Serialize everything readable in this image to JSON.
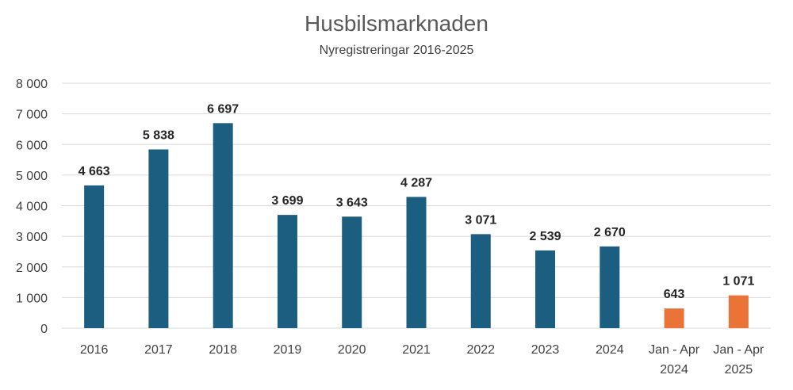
{
  "chart_data": {
    "type": "bar",
    "title": "Husbilsmarknaden",
    "subtitle": "Nyregistreringar 2016-2025",
    "xlabel": "",
    "ylabel": "",
    "ylim": [
      0,
      8000
    ],
    "yticks": [
      0,
      1000,
      2000,
      3000,
      4000,
      5000,
      6000,
      7000,
      8000
    ],
    "ytick_labels": [
      "0",
      "1 000",
      "2 000",
      "3 000",
      "4 000",
      "5 000",
      "6 000",
      "7 000",
      "8 000"
    ],
    "grid": true,
    "categories": [
      [
        "2016"
      ],
      [
        "2017"
      ],
      [
        "2018"
      ],
      [
        "2019"
      ],
      [
        "2020"
      ],
      [
        "2021"
      ],
      [
        "2022"
      ],
      [
        "2023"
      ],
      [
        "2024"
      ],
      [
        "Jan - Apr",
        "2024"
      ],
      [
        "Jan - Apr",
        "2025"
      ]
    ],
    "values": [
      4663,
      5838,
      6697,
      3699,
      3643,
      4287,
      3071,
      2539,
      2670,
      643,
      1071
    ],
    "data_labels": [
      "4 663",
      "5 838",
      "6 697",
      "3 699",
      "3 643",
      "4 287",
      "3 071",
      "2 539",
      "2 670",
      "643",
      "1 071"
    ],
    "bar_colors": [
      "#1b5e80",
      "#1b5e80",
      "#1b5e80",
      "#1b5e80",
      "#1b5e80",
      "#1b5e80",
      "#1b5e80",
      "#1b5e80",
      "#1b5e80",
      "#ea7437",
      "#ea7437"
    ],
    "legend": "none"
  }
}
